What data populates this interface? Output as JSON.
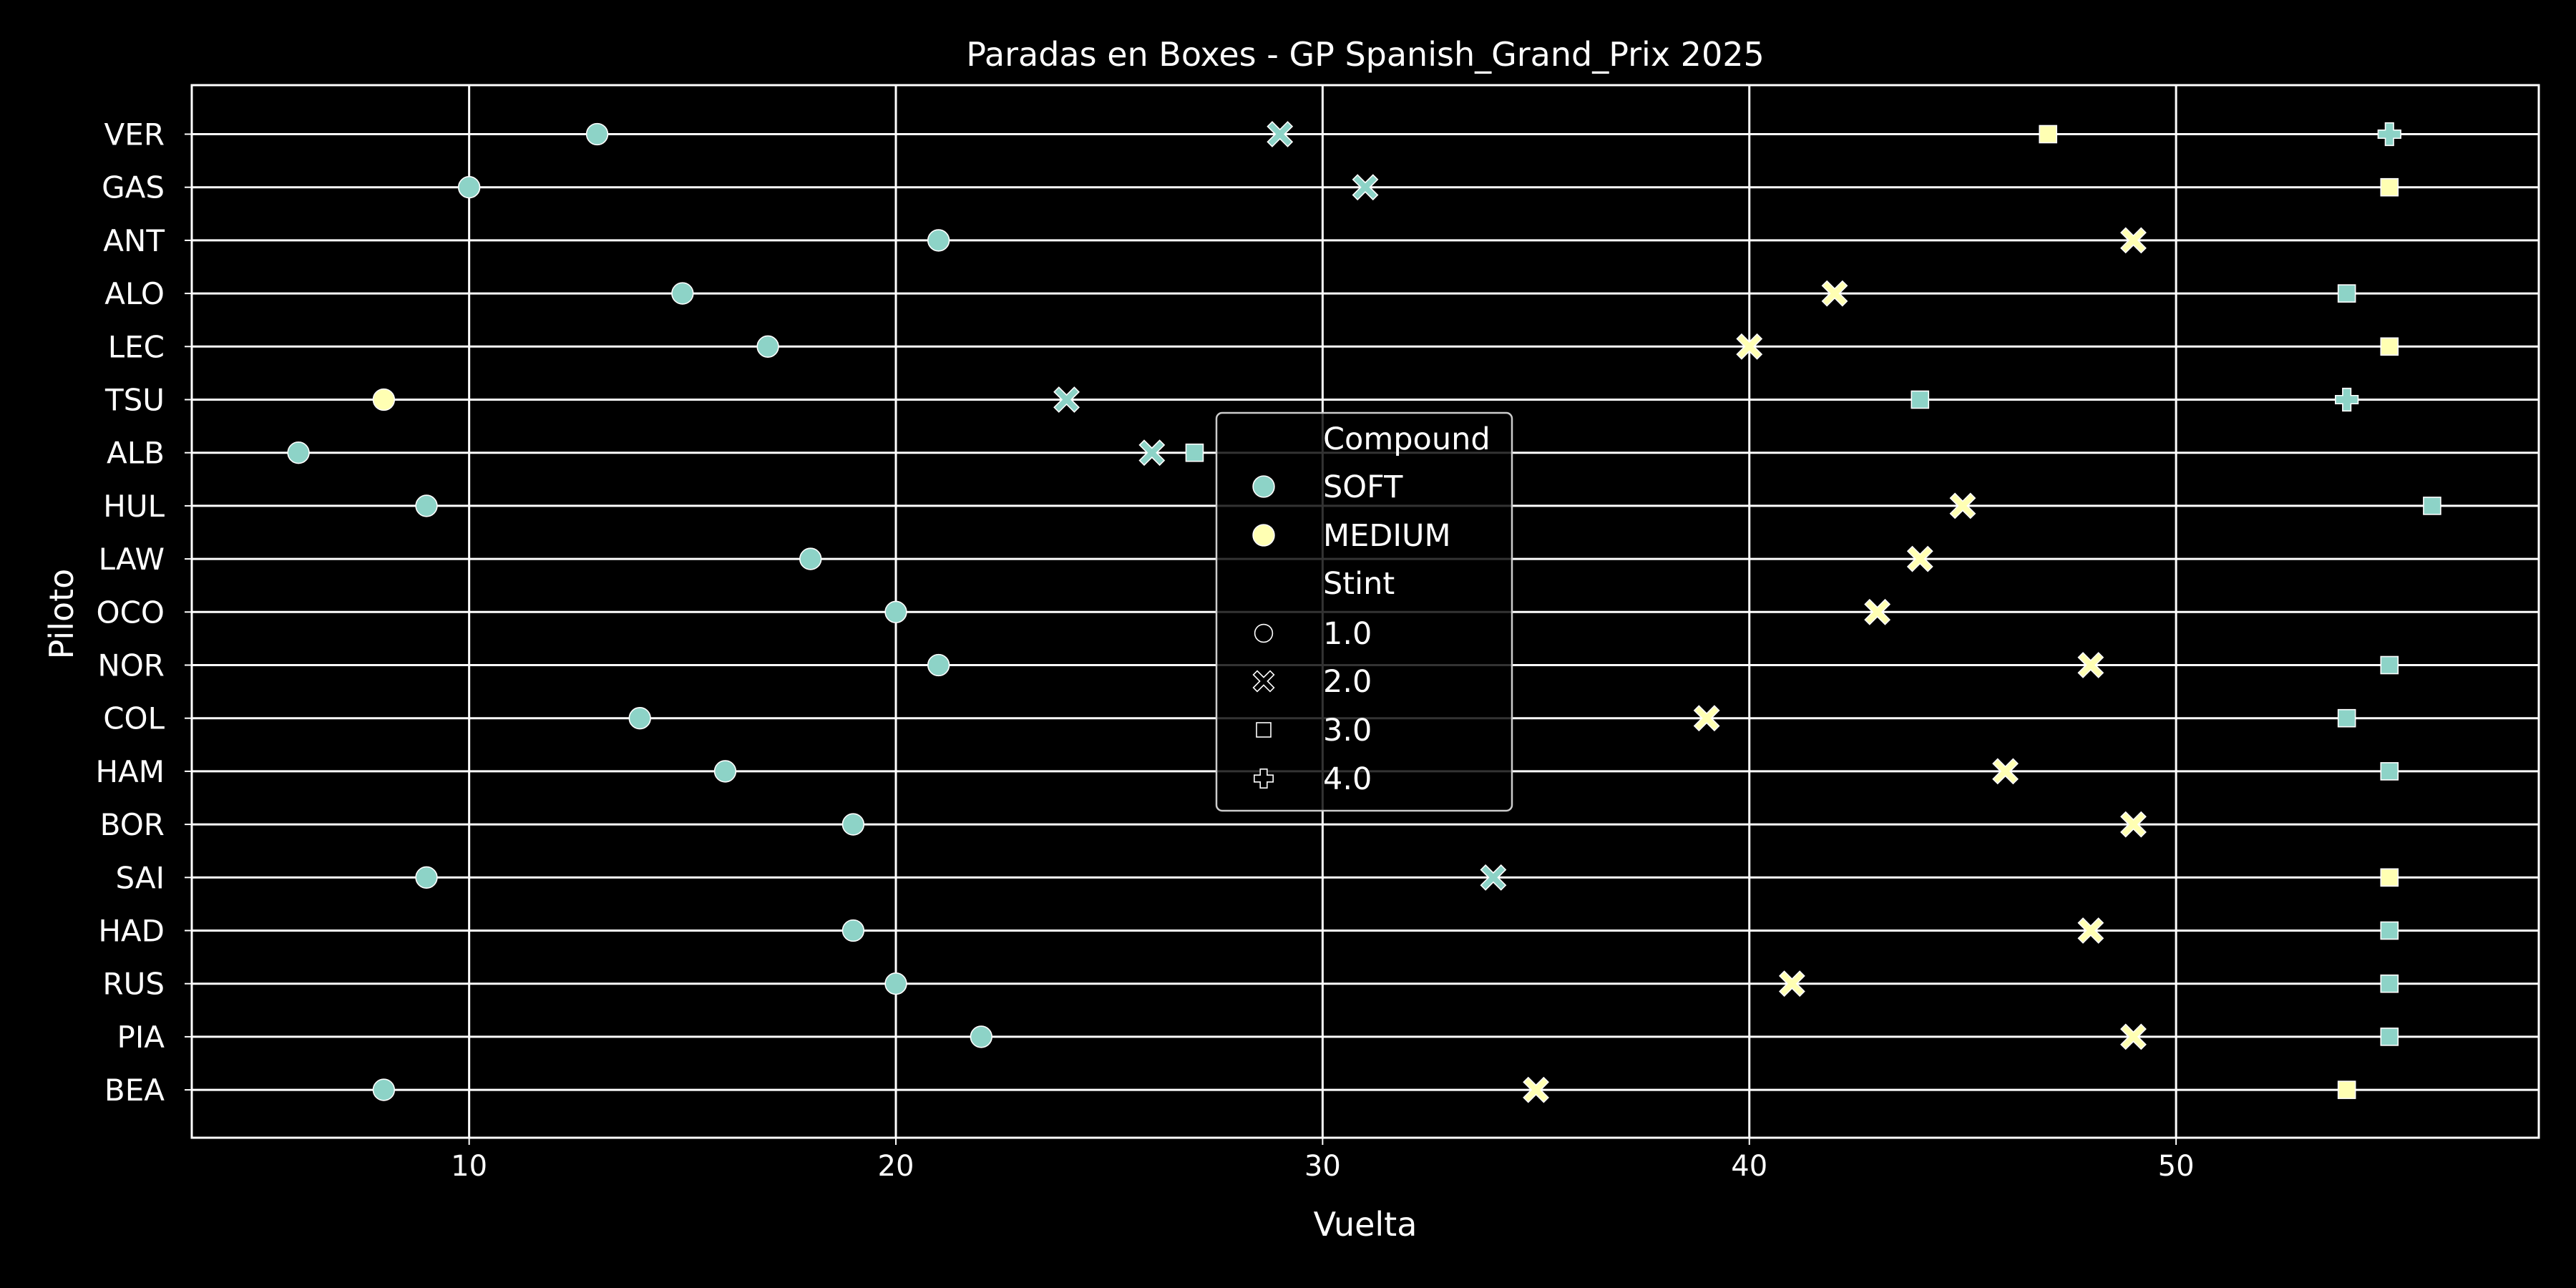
{
  "chart_data": {
    "type": "scatter",
    "title": "Paradas en Boxes - GP Spanish_Grand_Prix 2025",
    "xlabel": "Vuelta",
    "ylabel": "Piloto",
    "xlim": [
      3.5,
      58.5
    ],
    "x_ticks": [
      10,
      20,
      30,
      40,
      50
    ],
    "drivers": [
      "VER",
      "GAS",
      "ANT",
      "ALO",
      "LEC",
      "TSU",
      "ALB",
      "HUL",
      "LAW",
      "OCO",
      "NOR",
      "COL",
      "HAM",
      "BOR",
      "SAI",
      "HAD",
      "RUS",
      "PIA",
      "BEA"
    ],
    "grid": true,
    "legend_position": "center",
    "colors": {
      "SOFT": "#8dd3c7",
      "MEDIUM": "#ffffb3",
      "background": "#000000",
      "foreground": "#ffffff"
    },
    "legend": {
      "hue_title": "Compound",
      "hue_entries": [
        {
          "label": "SOFT",
          "compound": "SOFT"
        },
        {
          "label": "MEDIUM",
          "compound": "MEDIUM"
        }
      ],
      "style_title": "Stint",
      "style_entries": [
        {
          "label": "1.0",
          "marker": "circle"
        },
        {
          "label": "2.0",
          "marker": "x"
        },
        {
          "label": "3.0",
          "marker": "square"
        },
        {
          "label": "4.0",
          "marker": "plus"
        }
      ]
    },
    "points": [
      {
        "driver": "VER",
        "lap": 13,
        "compound": "SOFT",
        "stint": 1
      },
      {
        "driver": "VER",
        "lap": 29,
        "compound": "SOFT",
        "stint": 2
      },
      {
        "driver": "VER",
        "lap": 47,
        "compound": "MEDIUM",
        "stint": 3
      },
      {
        "driver": "VER",
        "lap": 55,
        "compound": "SOFT",
        "stint": 4
      },
      {
        "driver": "GAS",
        "lap": 10,
        "compound": "SOFT",
        "stint": 1
      },
      {
        "driver": "GAS",
        "lap": 31,
        "compound": "SOFT",
        "stint": 2
      },
      {
        "driver": "GAS",
        "lap": 55,
        "compound": "MEDIUM",
        "stint": 3
      },
      {
        "driver": "ANT",
        "lap": 21,
        "compound": "SOFT",
        "stint": 1
      },
      {
        "driver": "ANT",
        "lap": 49,
        "compound": "MEDIUM",
        "stint": 2
      },
      {
        "driver": "ALO",
        "lap": 15,
        "compound": "SOFT",
        "stint": 1
      },
      {
        "driver": "ALO",
        "lap": 42,
        "compound": "MEDIUM",
        "stint": 2
      },
      {
        "driver": "ALO",
        "lap": 54,
        "compound": "SOFT",
        "stint": 3
      },
      {
        "driver": "LEC",
        "lap": 17,
        "compound": "SOFT",
        "stint": 1
      },
      {
        "driver": "LEC",
        "lap": 40,
        "compound": "MEDIUM",
        "stint": 2
      },
      {
        "driver": "LEC",
        "lap": 55,
        "compound": "MEDIUM",
        "stint": 3
      },
      {
        "driver": "TSU",
        "lap": 8,
        "compound": "MEDIUM",
        "stint": 1
      },
      {
        "driver": "TSU",
        "lap": 24,
        "compound": "SOFT",
        "stint": 2
      },
      {
        "driver": "TSU",
        "lap": 44,
        "compound": "SOFT",
        "stint": 3
      },
      {
        "driver": "TSU",
        "lap": 54,
        "compound": "SOFT",
        "stint": 4
      },
      {
        "driver": "ALB",
        "lap": 6,
        "compound": "SOFT",
        "stint": 1
      },
      {
        "driver": "ALB",
        "lap": 26,
        "compound": "SOFT",
        "stint": 2
      },
      {
        "driver": "ALB",
        "lap": 27,
        "compound": "SOFT",
        "stint": 3
      },
      {
        "driver": "HUL",
        "lap": 9,
        "compound": "SOFT",
        "stint": 1
      },
      {
        "driver": "HUL",
        "lap": 45,
        "compound": "MEDIUM",
        "stint": 2
      },
      {
        "driver": "HUL",
        "lap": 56,
        "compound": "SOFT",
        "stint": 3
      },
      {
        "driver": "LAW",
        "lap": 18,
        "compound": "SOFT",
        "stint": 1
      },
      {
        "driver": "LAW",
        "lap": 44,
        "compound": "MEDIUM",
        "stint": 2
      },
      {
        "driver": "OCO",
        "lap": 20,
        "compound": "SOFT",
        "stint": 1
      },
      {
        "driver": "OCO",
        "lap": 43,
        "compound": "MEDIUM",
        "stint": 2
      },
      {
        "driver": "NOR",
        "lap": 21,
        "compound": "SOFT",
        "stint": 1
      },
      {
        "driver": "NOR",
        "lap": 48,
        "compound": "MEDIUM",
        "stint": 2
      },
      {
        "driver": "NOR",
        "lap": 55,
        "compound": "SOFT",
        "stint": 3
      },
      {
        "driver": "COL",
        "lap": 14,
        "compound": "SOFT",
        "stint": 1
      },
      {
        "driver": "COL",
        "lap": 39,
        "compound": "MEDIUM",
        "stint": 2
      },
      {
        "driver": "COL",
        "lap": 54,
        "compound": "SOFT",
        "stint": 3
      },
      {
        "driver": "HAM",
        "lap": 16,
        "compound": "SOFT",
        "stint": 1
      },
      {
        "driver": "HAM",
        "lap": 46,
        "compound": "MEDIUM",
        "stint": 2
      },
      {
        "driver": "HAM",
        "lap": 55,
        "compound": "SOFT",
        "stint": 3
      },
      {
        "driver": "BOR",
        "lap": 19,
        "compound": "SOFT",
        "stint": 1
      },
      {
        "driver": "BOR",
        "lap": 49,
        "compound": "MEDIUM",
        "stint": 2
      },
      {
        "driver": "SAI",
        "lap": 9,
        "compound": "SOFT",
        "stint": 1
      },
      {
        "driver": "SAI",
        "lap": 34,
        "compound": "SOFT",
        "stint": 2
      },
      {
        "driver": "SAI",
        "lap": 55,
        "compound": "MEDIUM",
        "stint": 3
      },
      {
        "driver": "HAD",
        "lap": 19,
        "compound": "SOFT",
        "stint": 1
      },
      {
        "driver": "HAD",
        "lap": 48,
        "compound": "MEDIUM",
        "stint": 2
      },
      {
        "driver": "HAD",
        "lap": 55,
        "compound": "SOFT",
        "stint": 3
      },
      {
        "driver": "RUS",
        "lap": 20,
        "compound": "SOFT",
        "stint": 1
      },
      {
        "driver": "RUS",
        "lap": 41,
        "compound": "MEDIUM",
        "stint": 2
      },
      {
        "driver": "RUS",
        "lap": 55,
        "compound": "SOFT",
        "stint": 3
      },
      {
        "driver": "PIA",
        "lap": 22,
        "compound": "SOFT",
        "stint": 1
      },
      {
        "driver": "PIA",
        "lap": 49,
        "compound": "MEDIUM",
        "stint": 2
      },
      {
        "driver": "PIA",
        "lap": 55,
        "compound": "SOFT",
        "stint": 3
      },
      {
        "driver": "BEA",
        "lap": 8,
        "compound": "SOFT",
        "stint": 1
      },
      {
        "driver": "BEA",
        "lap": 35,
        "compound": "MEDIUM",
        "stint": 2
      },
      {
        "driver": "BEA",
        "lap": 54,
        "compound": "MEDIUM",
        "stint": 3
      }
    ]
  }
}
